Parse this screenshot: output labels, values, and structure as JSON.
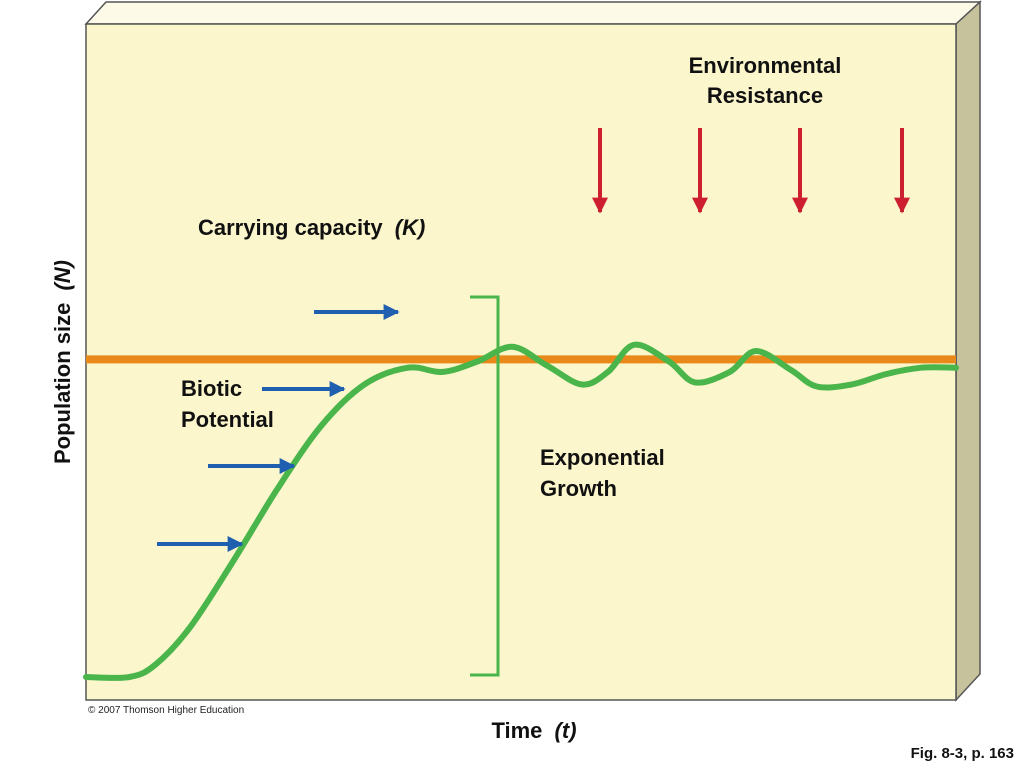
{
  "chart_data": {
    "type": "line",
    "xlabel_main": "Time",
    "xlabel_var": "(t)",
    "ylabel_main": "Population size",
    "ylabel_var": "(N)",
    "carrying_capacity": {
      "label_main": "Carrying capacity",
      "label_var": "(K)",
      "y": 0.76,
      "color": "#e8891a"
    },
    "series": [
      {
        "x": [
          0,
          0.05,
          0.08,
          0.12,
          0.17,
          0.22,
          0.27,
          0.32,
          0.37,
          0.41,
          0.45,
          0.49,
          0.53,
          0.57,
          0.6,
          0.63,
          0.67,
          0.7,
          0.74,
          0.77,
          0.81,
          0.84,
          0.88,
          0.92,
          0.96,
          1.0
        ],
        "y": [
          0.0,
          0.0,
          0.03,
          0.12,
          0.28,
          0.45,
          0.6,
          0.7,
          0.74,
          0.73,
          0.755,
          0.79,
          0.745,
          0.7,
          0.73,
          0.795,
          0.755,
          0.705,
          0.73,
          0.78,
          0.735,
          0.695,
          0.7,
          0.725,
          0.74,
          0.74
        ],
        "color": "#4ab54a"
      }
    ],
    "annotations": {
      "environmental_resistance_line1": "Environmental",
      "environmental_resistance_line2": "Resistance",
      "biotic_potential_line1": "Biotic",
      "biotic_potential_line2": "Potential",
      "exponential_growth_line1": "Exponential",
      "exponential_growth_line2": "Growth"
    },
    "colors": {
      "panel": "#fbf6cb",
      "side": "#c6c39c",
      "down_arrow": "#cc1f2f",
      "right_arrow": "#1f5fb0",
      "bracket": "#4ab54a"
    },
    "grid": false,
    "legend": "none"
  },
  "credit": "© 2007 Thomson Higher Education",
  "figure_ref": "Fig. 8-3, p. 163"
}
